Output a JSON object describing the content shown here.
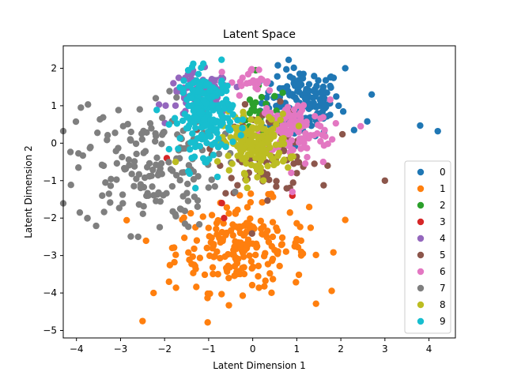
{
  "chart_data": {
    "type": "scatter",
    "title": "Latent Space",
    "xlabel": "Latent Dimension 1",
    "ylabel": "Latent Dimension 2",
    "xlim": [
      -4.3,
      4.6
    ],
    "ylim": [
      -5.2,
      2.6
    ],
    "x_ticks": [
      -4,
      -3,
      -2,
      -1,
      0,
      1,
      2,
      3,
      4
    ],
    "y_ticks": [
      -5,
      -4,
      -3,
      -2,
      -1,
      0,
      1,
      2
    ],
    "grid": false,
    "legend_position": "lower right",
    "series": [
      {
        "name": "0",
        "color": "#1f77b4",
        "clusters": [
          {
            "cx": 1.1,
            "cy": 1.1,
            "sx": 0.45,
            "sy": 0.45,
            "n": 150
          }
        ],
        "points": [
          [
            3.8,
            0.47
          ],
          [
            4.2,
            0.32
          ],
          [
            2.6,
            0.58
          ],
          [
            2.7,
            1.3
          ],
          [
            2.3,
            0.35
          ],
          [
            2.1,
            2.0
          ]
        ]
      },
      {
        "name": "1",
        "color": "#ff7f0e",
        "clusters": [
          {
            "cx": -0.25,
            "cy": -2.75,
            "sx": 0.75,
            "sy": 0.6,
            "n": 210
          }
        ],
        "points": [
          [
            -2.5,
            -4.75
          ],
          [
            -2.25,
            -4.0
          ],
          [
            2.1,
            -2.05
          ],
          [
            -1.9,
            -3.7
          ],
          [
            1.1,
            -2.9
          ]
        ]
      },
      {
        "name": "2",
        "color": "#2ca02c",
        "clusters": [
          {
            "cx": 0.2,
            "cy": 0.8,
            "sx": 0.3,
            "sy": 0.35,
            "n": 25
          }
        ],
        "points": [
          [
            0.55,
            0.65
          ],
          [
            0.3,
            1.05
          ]
        ]
      },
      {
        "name": "3",
        "color": "#d62728",
        "clusters": [],
        "points": [
          [
            -1.95,
            -0.4
          ],
          [
            -1.2,
            1.3
          ],
          [
            -0.7,
            -1.6
          ],
          [
            -0.65,
            -2.0
          ],
          [
            0.9,
            -1.4
          ],
          [
            0.2,
            -0.2
          ]
        ]
      },
      {
        "name": "4",
        "color": "#9467bd",
        "clusters": [
          {
            "cx": -1.2,
            "cy": 1.3,
            "sx": 0.35,
            "sy": 0.3,
            "n": 80
          }
        ],
        "points": [
          [
            -0.6,
            0.95
          ],
          [
            -1.8,
            1.6
          ]
        ]
      },
      {
        "name": "5",
        "color": "#8c564b",
        "clusters": [
          {
            "cx": 0.3,
            "cy": -0.2,
            "sx": 0.55,
            "sy": 0.55,
            "n": 90
          }
        ],
        "points": [
          [
            3.0,
            -1.0
          ],
          [
            1.7,
            -0.6
          ],
          [
            1.4,
            -0.55
          ],
          [
            1.0,
            -0.8
          ]
        ]
      },
      {
        "name": "6",
        "color": "#e377c2",
        "clusters": [
          {
            "cx": 0.95,
            "cy": 0.35,
            "sx": 0.4,
            "sy": 0.4,
            "n": 110
          },
          {
            "cx": 0.0,
            "cy": 1.6,
            "sx": 0.25,
            "sy": 0.2,
            "n": 25
          }
        ],
        "points": [
          [
            2.45,
            0.45
          ],
          [
            0.9,
            -1.3
          ],
          [
            1.6,
            -0.5
          ],
          [
            -0.7,
            1.9
          ]
        ]
      },
      {
        "name": "7",
        "color": "#7f7f7f",
        "clusters": [
          {
            "cx": -2.4,
            "cy": -0.6,
            "sx": 0.8,
            "sy": 0.85,
            "n": 170
          }
        ],
        "points": [
          [
            -3.9,
            0.95
          ],
          [
            -3.75,
            -2.0
          ],
          [
            -2.2,
            1.2
          ],
          [
            -2.6,
            -2.5
          ],
          [
            -0.4,
            -1.3
          ]
        ]
      },
      {
        "name": "8",
        "color": "#bcbd22",
        "clusters": [
          {
            "cx": 0.05,
            "cy": 0.0,
            "sx": 0.38,
            "sy": 0.38,
            "n": 170
          }
        ],
        "points": [
          [
            -1.75,
            -0.5
          ],
          [
            0.8,
            -0.65
          ],
          [
            -0.4,
            0.7
          ]
        ]
      },
      {
        "name": "9",
        "color": "#17becf",
        "clusters": [
          {
            "cx": -1.05,
            "cy": 0.8,
            "sx": 0.3,
            "sy": 0.55,
            "n": 210
          }
        ],
        "points": [
          [
            -1.35,
            2.12
          ],
          [
            -1.3,
            -1.2
          ],
          [
            -1.9,
            0.5
          ],
          [
            -0.8,
            -0.9
          ]
        ]
      }
    ]
  }
}
